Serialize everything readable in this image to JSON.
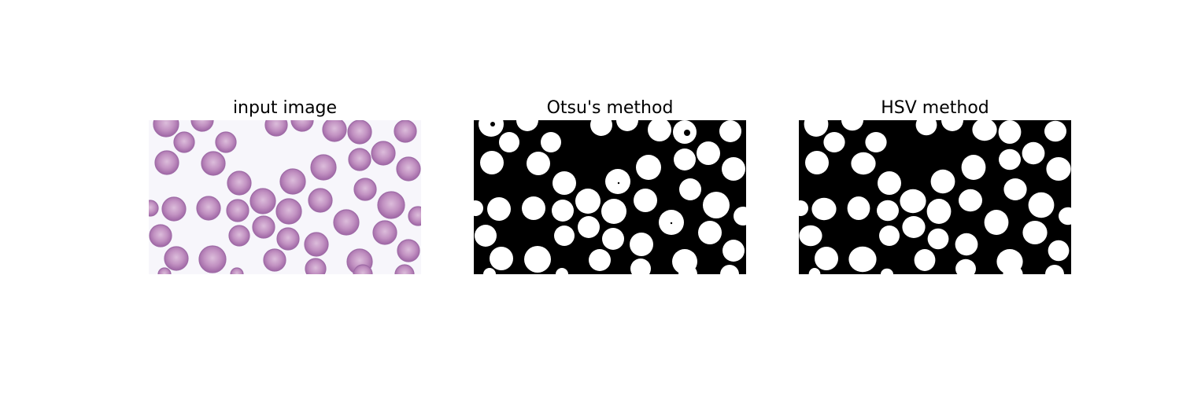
{
  "figure": {
    "panels": [
      {
        "title": "input image",
        "kind": "microscopy"
      },
      {
        "title": "Otsu's method",
        "kind": "binary-mask"
      },
      {
        "title": "HSV method",
        "kind": "binary-mask"
      }
    ],
    "colors": {
      "background": "#f7f6fb",
      "cell_fill": "#b77fb7",
      "cell_center": "#d9b5d8",
      "cell_rim": "#9a5f9f",
      "mask_foreground": "#ffffff",
      "mask_background": "#000000"
    }
  }
}
